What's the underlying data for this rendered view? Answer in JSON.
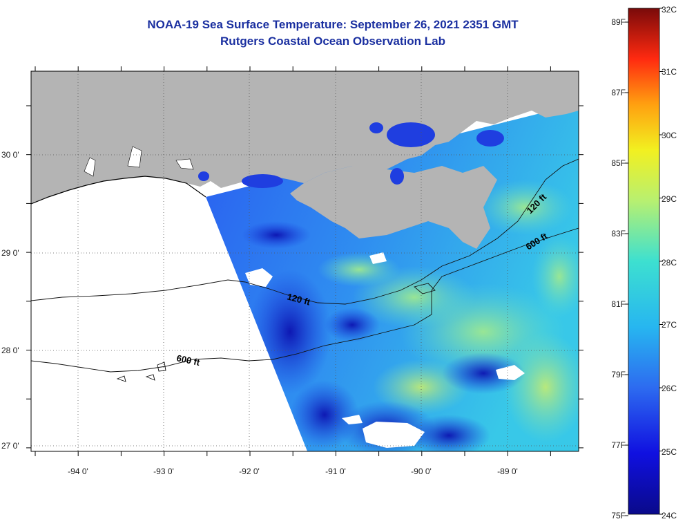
{
  "title": "NOAA-19 Sea Surface Temperature:  September 26, 2021 2351 GMT",
  "subtitle": "Rutgers Coastal Ocean Observation Lab",
  "axes": {
    "lat_labels": [
      "30 0'",
      "29 0'",
      "28 0'",
      "27 0'"
    ],
    "lon_labels": [
      "-94 0'",
      "-93 0'",
      "-92 0'",
      "-91 0'",
      "-90 0'",
      "-89 0'"
    ]
  },
  "contours": {
    "inner_label": "120 ft",
    "outer_label": "600 ft",
    "east_inner_label": "120 ft",
    "east_outer_label": "600 ft"
  },
  "colorbar": {
    "celsius": [
      "32C",
      "31C",
      "30C",
      "29C",
      "28C",
      "27C",
      "26C",
      "25C",
      "24C"
    ],
    "fahrenheit": [
      "89F",
      "87F",
      "85F",
      "83F",
      "81F",
      "79F",
      "77F",
      "75F"
    ]
  },
  "colors": {
    "land": "#b4b4b4",
    "no_data": "#ffffff",
    "title": "#1a2fa0"
  }
}
